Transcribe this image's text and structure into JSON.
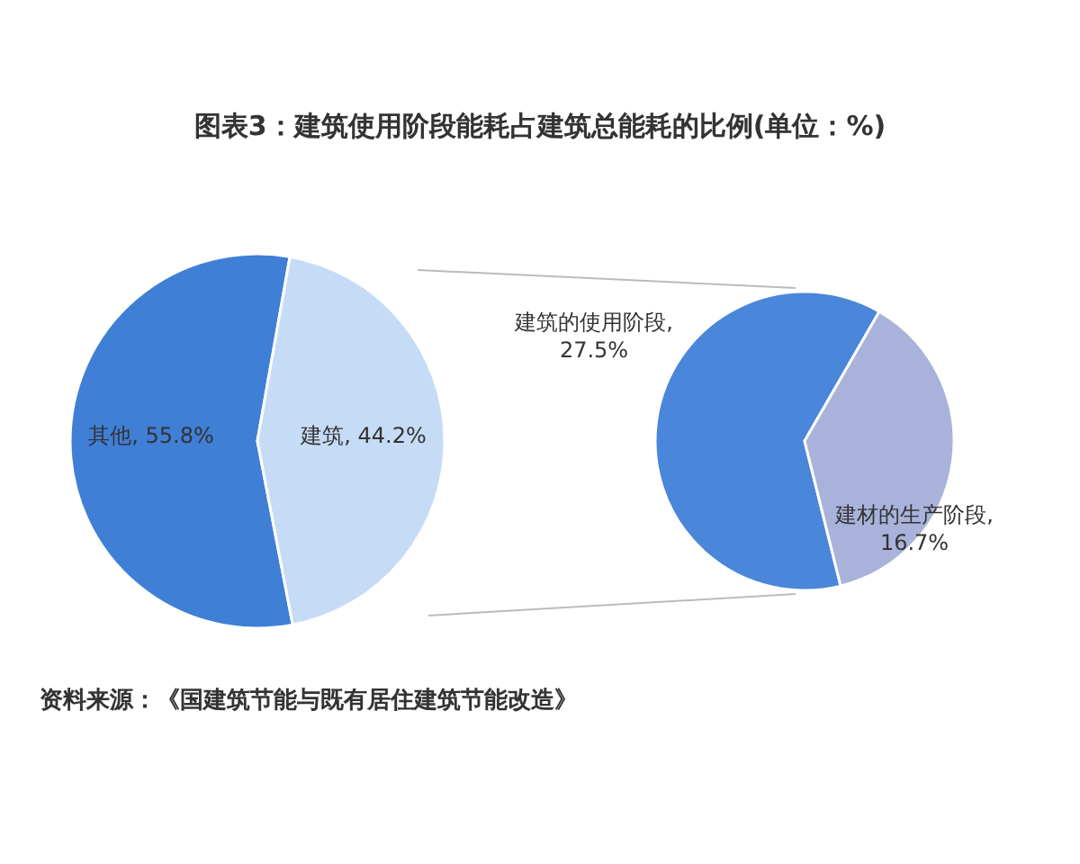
{
  "chart_data": [
    {
      "type": "pie",
      "title": "图表3：建筑使用阶段能耗占建筑总能耗的比例(单位：%)",
      "categories": [
        "其他",
        "建筑"
      ],
      "values": [
        55.8,
        44.2
      ],
      "colors": [
        "#3f7fd6",
        "#c6dcf6"
      ],
      "value_labels": [
        ", 55.8%",
        ", 44.2%"
      ],
      "annotations": [
        "资料来源：《国建筑节能与既有居住建筑节能改造》"
      ]
    },
    {
      "type": "pie",
      "categories": [
        "建筑的使用阶段",
        "建材的生产阶段"
      ],
      "values": [
        27.5,
        16.7
      ],
      "colors": [
        "#4a86da",
        "#a8b2da"
      ],
      "value_labels": [
        ",\n27.5%",
        ",\n16.7%"
      ]
    }
  ]
}
